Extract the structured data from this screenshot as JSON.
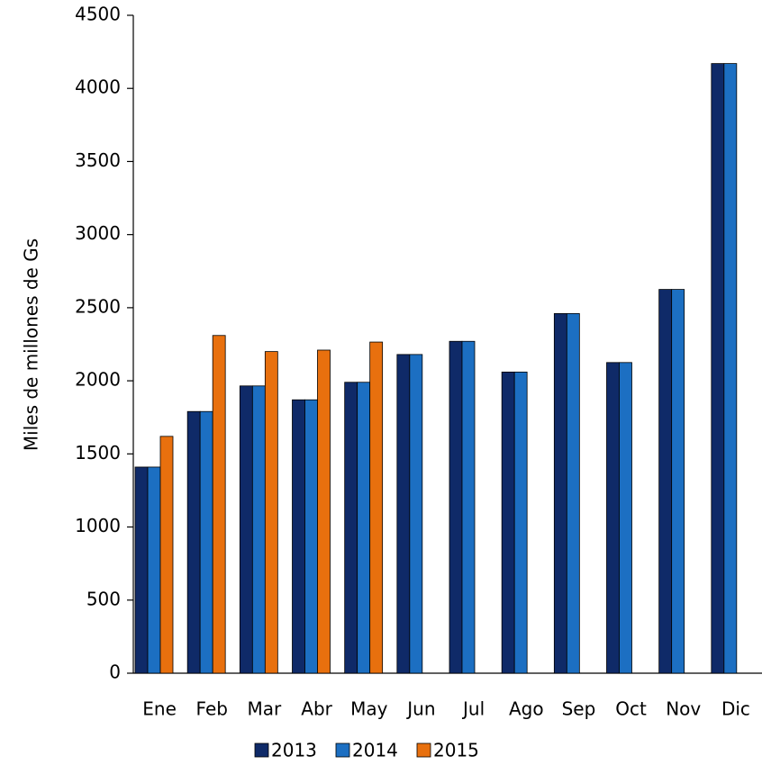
{
  "chart_data": {
    "type": "bar",
    "y_label": "Miles de millones de Gs",
    "categories": [
      "Ene",
      "Feb",
      "Mar",
      "Abr",
      "May",
      "Jun",
      "Jul",
      "Ago",
      "Sep",
      "Oct",
      "Nov",
      "Dic"
    ],
    "series": [
      {
        "name": "2013",
        "color": "#0f2a68",
        "values": [
          1410,
          1790,
          1965,
          1870,
          1990,
          2180,
          2270,
          2060,
          2460,
          2125,
          2625,
          4170
        ]
      },
      {
        "name": "2014",
        "color": "#1c6fc2",
        "values": [
          1410,
          1790,
          1965,
          1870,
          1990,
          2180,
          2270,
          2060,
          2460,
          2125,
          2625,
          4170
        ]
      },
      {
        "name": "2015",
        "color": "#e8700e",
        "values": [
          1620,
          2310,
          2200,
          2210,
          2265,
          null,
          null,
          null,
          null,
          null,
          null,
          null
        ]
      }
    ],
    "ylim": [
      0,
      4500
    ],
    "yticks": [
      0,
      500,
      1000,
      1500,
      2000,
      2500,
      3000,
      3500,
      4000,
      4500
    ],
    "legend": "bottom"
  }
}
